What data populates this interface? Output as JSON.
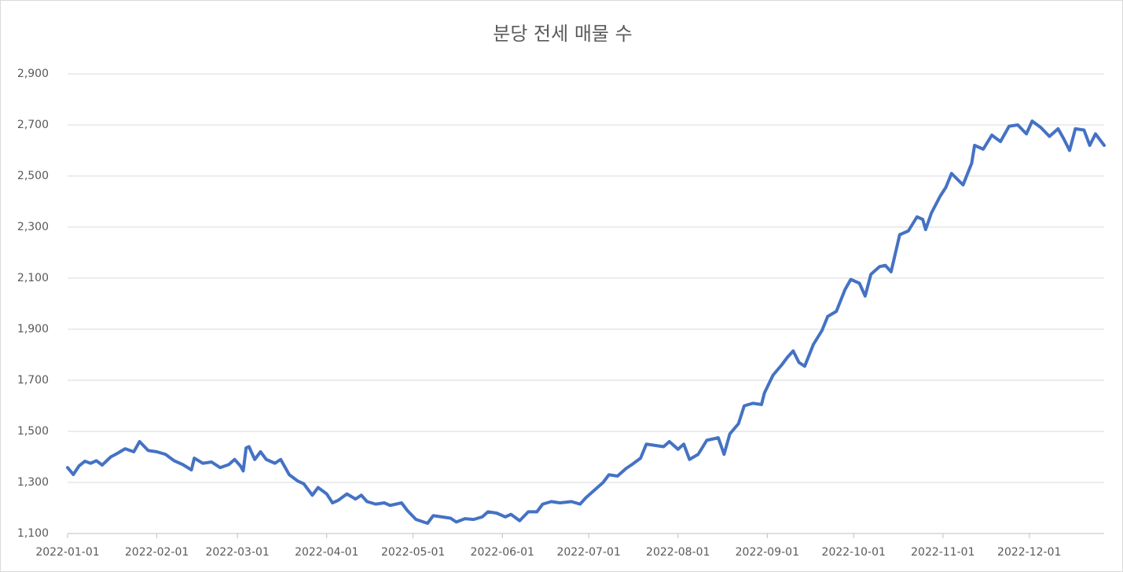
{
  "chart_data": {
    "type": "line",
    "title": "분당 전세 매물 수",
    "x": [
      "2022-01-01",
      "2022-01-03",
      "2022-01-05",
      "2022-01-07",
      "2022-01-09",
      "2022-01-11",
      "2022-01-13",
      "2022-01-16",
      "2022-01-18",
      "2022-01-21",
      "2022-01-24",
      "2022-01-26",
      "2022-01-29",
      "2022-02-01",
      "2022-02-04",
      "2022-02-07",
      "2022-02-10",
      "2022-02-13",
      "2022-02-14",
      "2022-02-17",
      "2022-02-20",
      "2022-02-23",
      "2022-02-26",
      "2022-02-28",
      "2022-03-02",
      "2022-03-03",
      "2022-03-04",
      "2022-03-05",
      "2022-03-07",
      "2022-03-09",
      "2022-03-11",
      "2022-03-14",
      "2022-03-16",
      "2022-03-19",
      "2022-03-22",
      "2022-03-24",
      "2022-03-27",
      "2022-03-29",
      "2022-04-01",
      "2022-04-03",
      "2022-04-05",
      "2022-04-08",
      "2022-04-11",
      "2022-04-13",
      "2022-04-15",
      "2022-04-18",
      "2022-04-21",
      "2022-04-23",
      "2022-04-27",
      "2022-04-29",
      "2022-05-02",
      "2022-05-06",
      "2022-05-08",
      "2022-05-11",
      "2022-05-14",
      "2022-05-16",
      "2022-05-19",
      "2022-05-22",
      "2022-05-25",
      "2022-05-27",
      "2022-05-30",
      "2022-06-02",
      "2022-06-04",
      "2022-06-07",
      "2022-06-10",
      "2022-06-13",
      "2022-06-15",
      "2022-06-18",
      "2022-06-21",
      "2022-06-25",
      "2022-06-28",
      "2022-06-30",
      "2022-07-03",
      "2022-07-06",
      "2022-07-08",
      "2022-07-11",
      "2022-07-14",
      "2022-07-16",
      "2022-07-19",
      "2022-07-21",
      "2022-07-24",
      "2022-07-27",
      "2022-07-29",
      "2022-08-01",
      "2022-08-03",
      "2022-08-05",
      "2022-08-08",
      "2022-08-11",
      "2022-08-13",
      "2022-08-15",
      "2022-08-17",
      "2022-08-19",
      "2022-08-22",
      "2022-08-24",
      "2022-08-27",
      "2022-08-30",
      "2022-08-31",
      "2022-09-03",
      "2022-09-06",
      "2022-09-08",
      "2022-09-10",
      "2022-09-12",
      "2022-09-14",
      "2022-09-17",
      "2022-09-20",
      "2022-09-22",
      "2022-09-25",
      "2022-09-28",
      "2022-09-30",
      "2022-10-03",
      "2022-10-05",
      "2022-10-07",
      "2022-10-10",
      "2022-10-12",
      "2022-10-14",
      "2022-10-17",
      "2022-10-20",
      "2022-10-23",
      "2022-10-25",
      "2022-10-26",
      "2022-10-28",
      "2022-10-31",
      "2022-11-02",
      "2022-11-04",
      "2022-11-08",
      "2022-11-11",
      "2022-11-12",
      "2022-11-15",
      "2022-11-18",
      "2022-11-21",
      "2022-11-24",
      "2022-11-27",
      "2022-11-30",
      "2022-12-02",
      "2022-12-05",
      "2022-12-08",
      "2022-12-11",
      "2022-12-13",
      "2022-12-15",
      "2022-12-17",
      "2022-12-20",
      "2022-12-22",
      "2022-12-24",
      "2022-12-27"
    ],
    "series": [
      {
        "color": "#4472c4",
        "values": [
          1358,
          1331,
          1365,
          1383,
          1375,
          1385,
          1368,
          1400,
          1412,
          1432,
          1420,
          1460,
          1425,
          1420,
          1410,
          1385,
          1370,
          1349,
          1395,
          1375,
          1380,
          1358,
          1370,
          1390,
          1365,
          1345,
          1435,
          1440,
          1390,
          1420,
          1390,
          1375,
          1390,
          1330,
          1305,
          1295,
          1250,
          1280,
          1255,
          1220,
          1230,
          1255,
          1235,
          1250,
          1225,
          1215,
          1220,
          1210,
          1220,
          1190,
          1155,
          1140,
          1170,
          1165,
          1160,
          1145,
          1158,
          1155,
          1165,
          1185,
          1180,
          1165,
          1175,
          1150,
          1185,
          1185,
          1215,
          1225,
          1220,
          1225,
          1215,
          1240,
          1270,
          1300,
          1330,
          1325,
          1355,
          1370,
          1395,
          1450,
          1445,
          1440,
          1460,
          1430,
          1450,
          1390,
          1410,
          1465,
          1470,
          1475,
          1410,
          1490,
          1530,
          1600,
          1610,
          1605,
          1650,
          1720,
          1760,
          1790,
          1815,
          1770,
          1755,
          1840,
          1895,
          1950,
          1970,
          2055,
          2095,
          2080,
          2030,
          2115,
          2145,
          2150,
          2125,
          2270,
          2285,
          2340,
          2330,
          2290,
          2355,
          2420,
          2455,
          2510,
          2465,
          2550,
          2620,
          2605,
          2660,
          2635,
          2695,
          2700,
          2665,
          2715,
          2690,
          2655,
          2685,
          2645,
          2600,
          2685,
          2680,
          2620,
          2665,
          2620
        ]
      }
    ],
    "xlim": [
      "2022-01-01",
      "2022-12-27"
    ],
    "xticks": [
      "2022-01-01",
      "2022-02-01",
      "2022-03-01",
      "2022-04-01",
      "2022-05-01",
      "2022-06-01",
      "2022-07-01",
      "2022-08-01",
      "2022-09-01",
      "2022-10-01",
      "2022-11-01",
      "2022-12-01"
    ],
    "ylim": [
      1100,
      2900
    ],
    "yticks": [
      {
        "value": 1100,
        "label": "1,100"
      },
      {
        "value": 1300,
        "label": "1,300"
      },
      {
        "value": 1500,
        "label": "1,500"
      },
      {
        "value": 1700,
        "label": "1,700"
      },
      {
        "value": 1900,
        "label": "1,900"
      },
      {
        "value": 2100,
        "label": "2,100"
      },
      {
        "value": 2300,
        "label": "2,300"
      },
      {
        "value": 2500,
        "label": "2,500"
      },
      {
        "value": 2700,
        "label": "2,700"
      },
      {
        "value": 2900,
        "label": "2,900"
      }
    ],
    "grid": true
  }
}
